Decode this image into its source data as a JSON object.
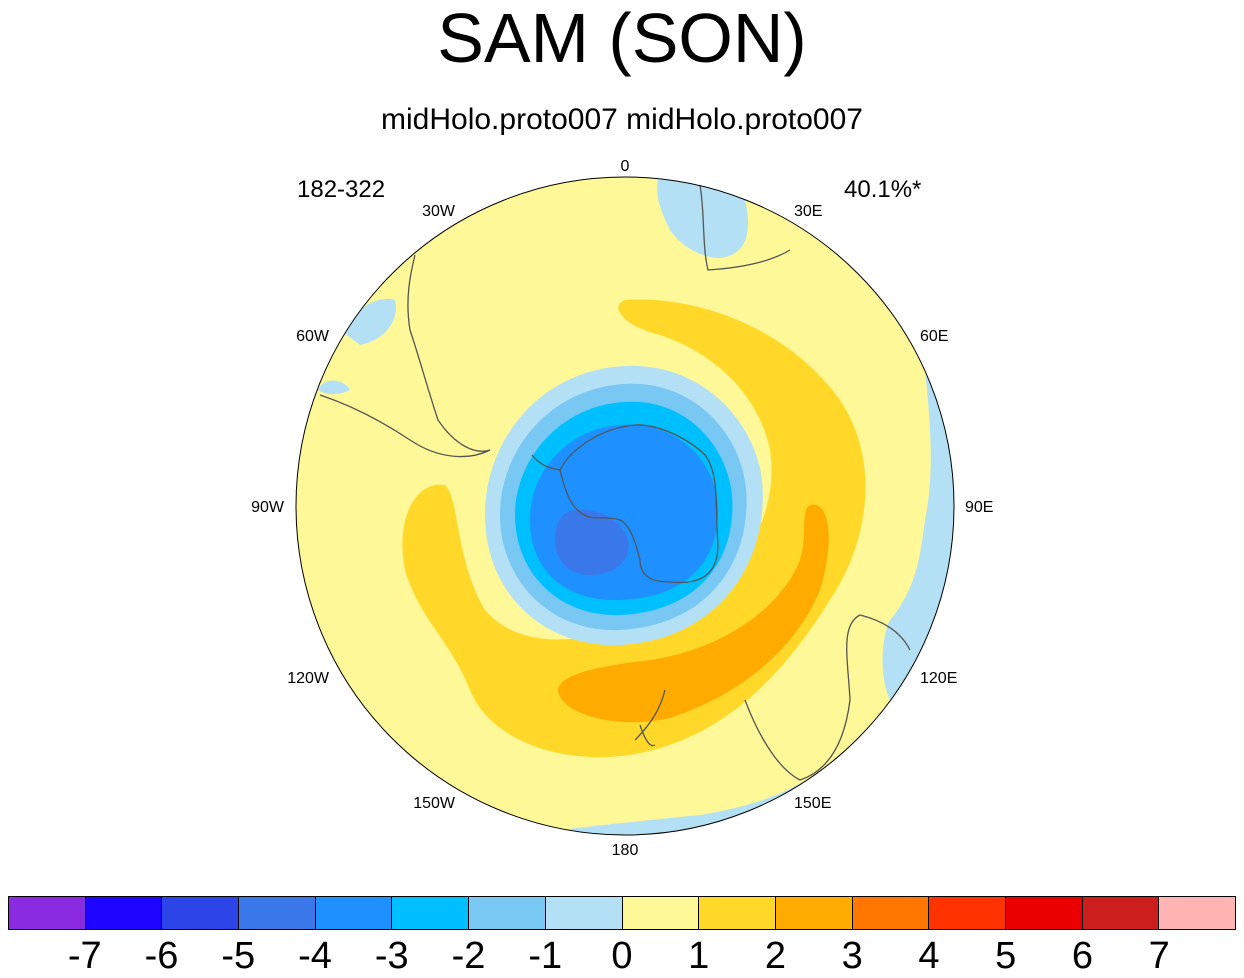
{
  "title": "SAM (SON)",
  "subtitle": "midHolo.proto007  midHolo.proto007",
  "left_label": "182-322",
  "right_label": "40.1%*",
  "longitude_labels": {
    "lon_0": "0",
    "lon_30e": "30E",
    "lon_60e": "60E",
    "lon_90e": "90E",
    "lon_120e": "120E",
    "lon_150e": "150E",
    "lon_180": "180",
    "lon_150w": "150W",
    "lon_120w": "120W",
    "lon_90w": "90W",
    "lon_60w": "60W",
    "lon_30w": "30W"
  },
  "colorbar": {
    "colors": [
      "#8a2be2",
      "#1e05ff",
      "#2d44e8",
      "#3a78ea",
      "#1e90ff",
      "#00bfff",
      "#79c7f3",
      "#b4e0f5",
      "#fff899",
      "#ffd82a",
      "#ffab00",
      "#ff7700",
      "#ff3300",
      "#ea0000",
      "#cd1e1e",
      "#ffb4b4"
    ],
    "labels": [
      "-7",
      "-6",
      "-5",
      "-4",
      "-3",
      "-2",
      "-1",
      "0",
      "1",
      "2",
      "3",
      "4",
      "5",
      "6",
      "7"
    ]
  }
}
